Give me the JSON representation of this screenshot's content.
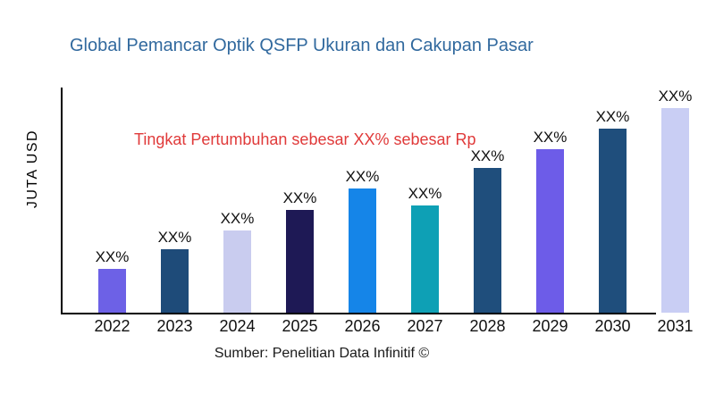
{
  "title": "Global Pemancar Optik QSFP Ukuran dan Cakupan Pasar",
  "annotation": "Tingkat Pertumbuhan sebesar XX% sebesar Rp",
  "source": "Sumber: Penelitian Data Infinitif ©",
  "ylabel": "JUTA USD",
  "colors": {
    "title": "#31699E",
    "annotation": "#E03A3A",
    "axis": "#000000",
    "text": "#111111"
  },
  "chart_data": {
    "type": "bar",
    "title": "Global Pemancar Optik QSFP Ukuran dan Cakupan Pasar",
    "xlabel": "",
    "ylabel": "JUTA USD",
    "categories": [
      "2022",
      "2023",
      "2024",
      "2025",
      "2026",
      "2027",
      "2028",
      "2029",
      "2030",
      "2031"
    ],
    "values": [
      48,
      70,
      91,
      114,
      137,
      119,
      160,
      181,
      204,
      226
    ],
    "bar_labels": [
      "XX%",
      "XX%",
      "XX%",
      "XX%",
      "XX%",
      "XX%",
      "XX%",
      "XX%",
      "XX%",
      "XX%"
    ],
    "bar_colors": [
      "#6D61E6",
      "#1E4B79",
      "#C9CCEF",
      "#1E1955",
      "#1585E8",
      "#0EA0B5",
      "#1F4E7C",
      "#6D5CE8",
      "#1F4E7C",
      "#C9CEF4"
    ],
    "ylim": [
      0,
      250
    ],
    "grid": false,
    "legend": null,
    "annotation": "Tingkat Pertumbuhan sebesar XX% sebesar Rp",
    "note": "values are relative units estimated from bar heights; no numeric axis ticks are shown in the chart"
  }
}
